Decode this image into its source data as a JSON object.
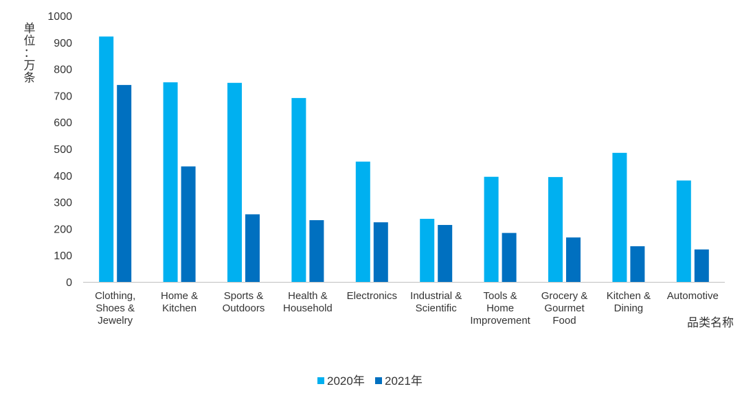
{
  "chart_data": {
    "type": "bar",
    "ylabel": "单位：万条",
    "xlabel": "品类名称",
    "ylim": [
      0,
      1000
    ],
    "yticks": [
      0,
      100,
      200,
      300,
      400,
      500,
      600,
      700,
      800,
      900,
      1000
    ],
    "grid": false,
    "legend_position": "bottom",
    "categories": [
      [
        "Clothing,",
        "Shoes &",
        "Jewelry"
      ],
      [
        "Home &",
        "Kitchen"
      ],
      [
        "Sports &",
        "Outdoors"
      ],
      [
        "Health &",
        "Household"
      ],
      [
        "Electronics"
      ],
      [
        "Industrial &",
        "Scientific"
      ],
      [
        "Tools &",
        "Home",
        "Improvement"
      ],
      [
        "Grocery &",
        "Gourmet",
        "Food"
      ],
      [
        "Kitchen &",
        "Dining"
      ],
      [
        "Automotive"
      ]
    ],
    "series": [
      {
        "name": "2020年",
        "color": "#00b0f0",
        "values": [
          922,
          750,
          748,
          691,
          452,
          237,
          395,
          394,
          485,
          381
        ]
      },
      {
        "name": "2021年",
        "color": "#0070c0",
        "values": [
          740,
          434,
          254,
          232,
          224,
          214,
          184,
          167,
          134,
          122
        ]
      }
    ]
  }
}
